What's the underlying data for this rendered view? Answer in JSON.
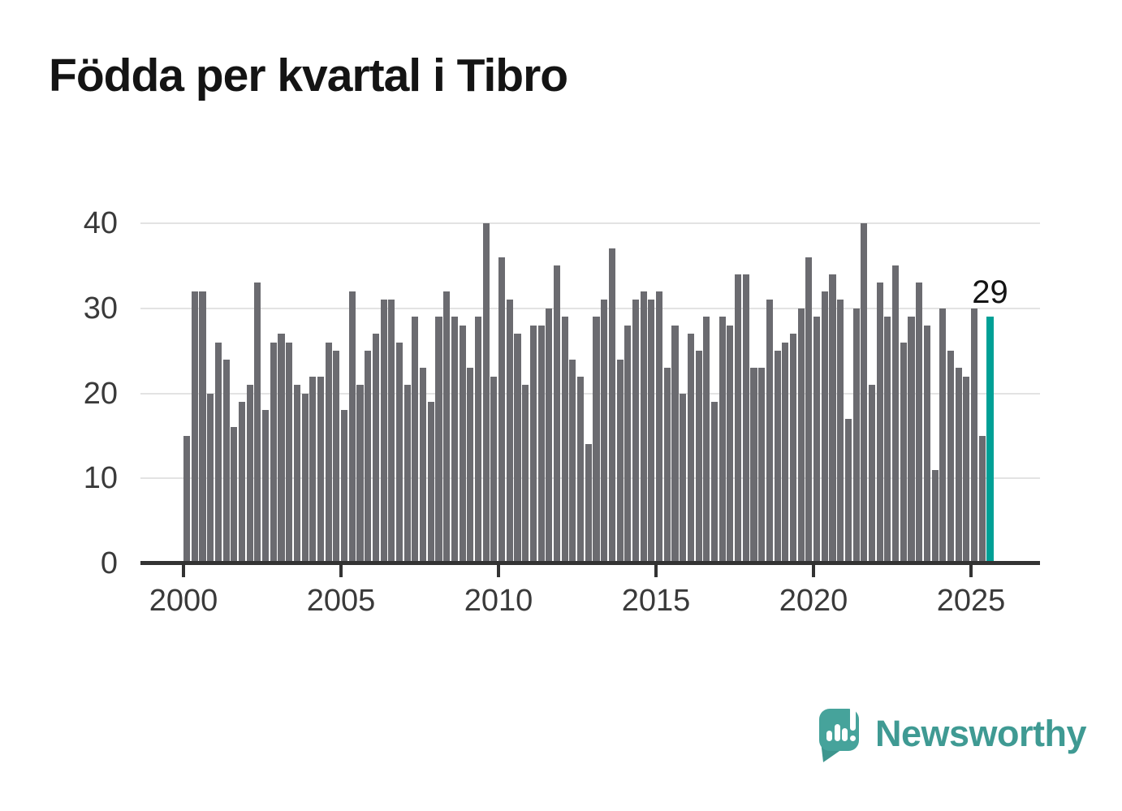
{
  "title": "Födda per kvartal i Tibro",
  "chart_data": {
    "type": "bar",
    "title": "Födda per kvartal i Tibro",
    "x_unit": "quarter",
    "x_start": "2000 Q1",
    "x_end": "2025 Q3",
    "values": [
      15,
      32,
      32,
      20,
      26,
      24,
      16,
      19,
      21,
      33,
      18,
      26,
      27,
      26,
      21,
      20,
      22,
      22,
      26,
      25,
      18,
      32,
      21,
      25,
      27,
      31,
      31,
      26,
      21,
      29,
      23,
      19,
      29,
      32,
      29,
      28,
      23,
      29,
      40,
      22,
      36,
      31,
      27,
      21,
      28,
      28,
      30,
      35,
      29,
      24,
      22,
      14,
      29,
      31,
      37,
      24,
      28,
      31,
      32,
      31,
      32,
      23,
      28,
      20,
      27,
      25,
      29,
      19,
      29,
      28,
      34,
      34,
      23,
      23,
      31,
      25,
      26,
      27,
      30,
      36,
      29,
      32,
      34,
      31,
      17,
      30,
      40,
      21,
      33,
      29,
      35,
      26,
      29,
      33,
      28,
      11,
      30,
      25,
      23,
      22,
      30,
      15,
      29
    ],
    "highlight_last_bar": true,
    "last_bar_label": "29",
    "xticks": [
      "2000",
      "2005",
      "2010",
      "2015",
      "2020",
      "2025"
    ],
    "yticks": [
      "0",
      "10",
      "20",
      "30",
      "40"
    ],
    "ylim": [
      0,
      40
    ],
    "grid": true,
    "legend": "none",
    "bar_color": "#6b6b70",
    "highlight_color": "#00a096"
  },
  "colors": {
    "background": "#ffffff",
    "title_text": "#141414",
    "axis_line": "#333333",
    "tick_text": "#3a3a3a",
    "gridline": "#e3e3e3",
    "bar": "#6b6b70",
    "highlight": "#00a096",
    "brand_teal": "#3f9a93"
  },
  "footer": {
    "brand": "Newsworthy",
    "logo_icon": "speech-bubble-bar-chart-icon"
  }
}
